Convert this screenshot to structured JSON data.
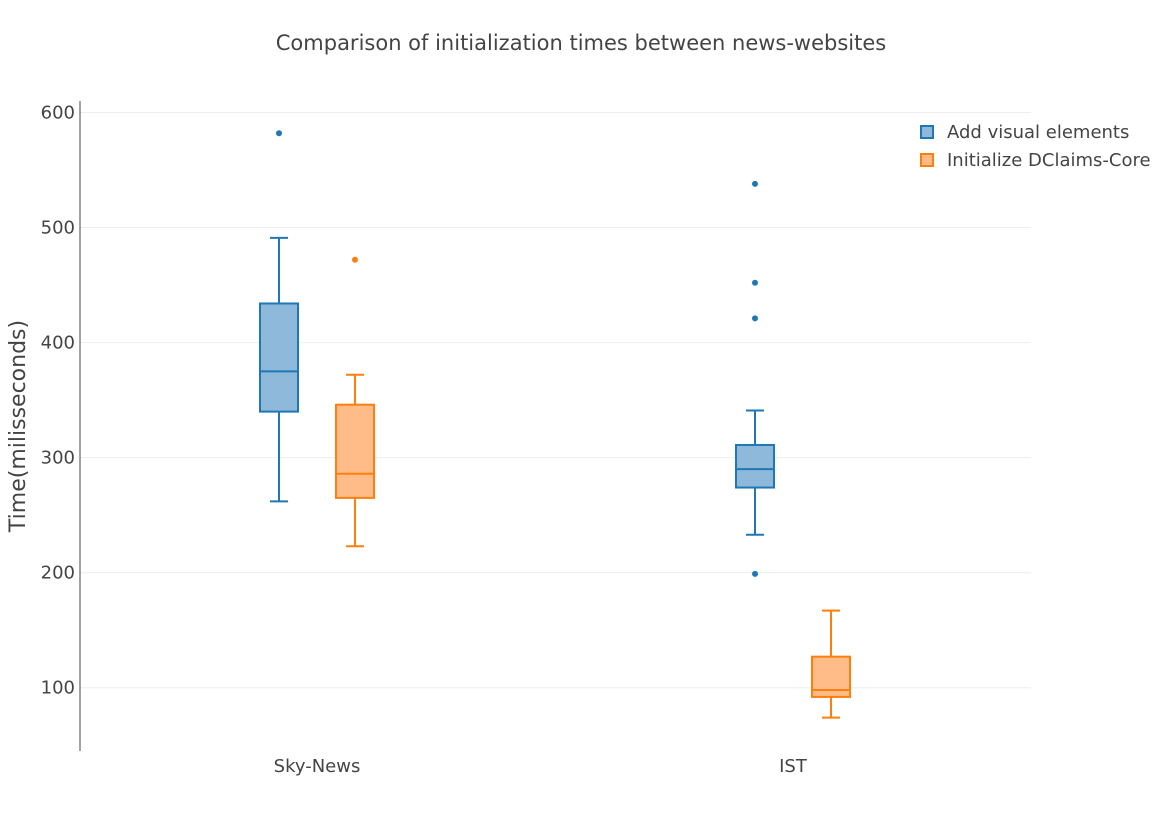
{
  "chart_data": {
    "type": "box",
    "title": "Comparison of initialization times between news-websites",
    "xlabel": "",
    "ylabel": "Time(milisseconds)",
    "categories": [
      "Sky-News",
      "IST"
    ],
    "ylim": [
      45,
      610
    ],
    "yticks": [
      100,
      200,
      300,
      400,
      500,
      600
    ],
    "grid": true,
    "legend_position": "top-right",
    "series": [
      {
        "name": "Add visual elements",
        "color": "#1f77b4",
        "fill": "#8fb9da",
        "boxes": [
          {
            "category": "Sky-News",
            "lower_whisker": 262,
            "q1": 340,
            "median": 375,
            "q3": 434,
            "upper_whisker": 491,
            "outliers": [
              582
            ]
          },
          {
            "category": "IST",
            "lower_whisker": 233,
            "q1": 274,
            "median": 290,
            "q3": 311,
            "upper_whisker": 341,
            "outliers": [
              199,
              421,
              452,
              538
            ]
          }
        ]
      },
      {
        "name": "Initialize DClaims-Core",
        "color": "#ff7f0e",
        "fill": "#ffbb88",
        "boxes": [
          {
            "category": "Sky-News",
            "lower_whisker": 223,
            "q1": 265,
            "median": 286,
            "q3": 346,
            "upper_whisker": 372,
            "outliers": [
              472
            ]
          },
          {
            "category": "IST",
            "lower_whisker": 74,
            "q1": 92,
            "median": 98,
            "q3": 127,
            "upper_whisker": 167,
            "outliers": []
          }
        ]
      }
    ]
  }
}
